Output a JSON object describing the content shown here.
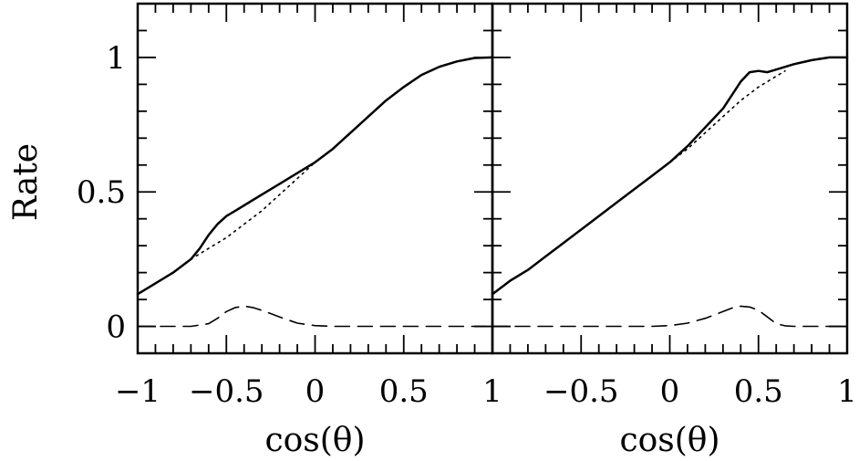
{
  "chart_data": [
    {
      "type": "line",
      "panel": "left",
      "xlabel": "cos(θ)",
      "ylabel": "Rate",
      "xlim": [
        -1,
        1
      ],
      "ylim": [
        -0.1,
        1.2
      ],
      "xticks": [
        -1,
        -0.5,
        0,
        0.5,
        1
      ],
      "xtick_labels": [
        "−1",
        "−0.5",
        "0",
        "0.5",
        "1"
      ],
      "yticks": [
        0,
        0.5,
        1
      ],
      "ytick_labels": [
        "0",
        "0.5",
        "1"
      ],
      "grid": false,
      "series": [
        {
          "style": "solid",
          "x": [
            -1,
            -0.9,
            -0.8,
            -0.7,
            -0.65,
            -0.6,
            -0.55,
            -0.5,
            -0.45,
            -0.4,
            -0.3,
            -0.2,
            -0.1,
            0,
            0.1,
            0.2,
            0.3,
            0.4,
            0.5,
            0.6,
            0.7,
            0.8,
            0.9,
            1
          ],
          "values": [
            0.12,
            0.16,
            0.2,
            0.25,
            0.29,
            0.34,
            0.38,
            0.41,
            0.43,
            0.45,
            0.49,
            0.53,
            0.57,
            0.61,
            0.66,
            0.72,
            0.78,
            0.84,
            0.89,
            0.935,
            0.965,
            0.985,
            0.998,
            1.0
          ]
        },
        {
          "style": "dotted",
          "x": [
            -0.7,
            -0.6,
            -0.5,
            -0.4,
            -0.3,
            -0.2,
            -0.1,
            0
          ],
          "values": [
            0.25,
            0.29,
            0.33,
            0.38,
            0.43,
            0.49,
            0.55,
            0.61
          ]
        },
        {
          "style": "dashed",
          "x": [
            -1,
            -0.7,
            -0.6,
            -0.55,
            -0.5,
            -0.45,
            -0.4,
            -0.35,
            -0.3,
            -0.2,
            -0.1,
            0,
            0.1,
            0.5,
            1
          ],
          "values": [
            0,
            0,
            0.01,
            0.03,
            0.055,
            0.07,
            0.075,
            0.07,
            0.06,
            0.035,
            0.012,
            0.003,
            0,
            0,
            0
          ]
        }
      ]
    },
    {
      "type": "line",
      "panel": "right",
      "xlabel": "cos(θ)",
      "ylabel": "",
      "xlim": [
        -1,
        1
      ],
      "ylim": [
        -0.1,
        1.2
      ],
      "xticks": [
        -0.5,
        0,
        0.5,
        1
      ],
      "xtick_labels": [
        "−0.5",
        "0",
        "0.5",
        "1"
      ],
      "yticks": [
        0,
        0.5,
        1
      ],
      "ytick_labels": [],
      "grid": false,
      "series": [
        {
          "style": "solid",
          "x": [
            -1,
            -0.9,
            -0.8,
            -0.7,
            -0.6,
            -0.5,
            -0.4,
            -0.3,
            -0.2,
            -0.1,
            0,
            0.1,
            0.2,
            0.3,
            0.35,
            0.4,
            0.45,
            0.5,
            0.55,
            0.6,
            0.7,
            0.8,
            0.9,
            1
          ],
          "values": [
            0.12,
            0.17,
            0.21,
            0.26,
            0.31,
            0.36,
            0.41,
            0.46,
            0.51,
            0.56,
            0.61,
            0.67,
            0.74,
            0.81,
            0.86,
            0.91,
            0.945,
            0.95,
            0.945,
            0.955,
            0.975,
            0.99,
            1.0,
            1.0
          ]
        },
        {
          "style": "dotted",
          "x": [
            0,
            0.1,
            0.2,
            0.3,
            0.4,
            0.5,
            0.6,
            0.65
          ],
          "values": [
            0.61,
            0.66,
            0.72,
            0.78,
            0.84,
            0.89,
            0.93,
            0.95
          ]
        },
        {
          "style": "dashed",
          "x": [
            -1,
            -0.1,
            0,
            0.1,
            0.2,
            0.3,
            0.35,
            0.4,
            0.45,
            0.5,
            0.55,
            0.6,
            0.65,
            0.7,
            1
          ],
          "values": [
            0,
            0,
            0.003,
            0.012,
            0.03,
            0.055,
            0.068,
            0.075,
            0.072,
            0.06,
            0.035,
            0.01,
            0.002,
            0,
            0
          ]
        }
      ]
    }
  ]
}
